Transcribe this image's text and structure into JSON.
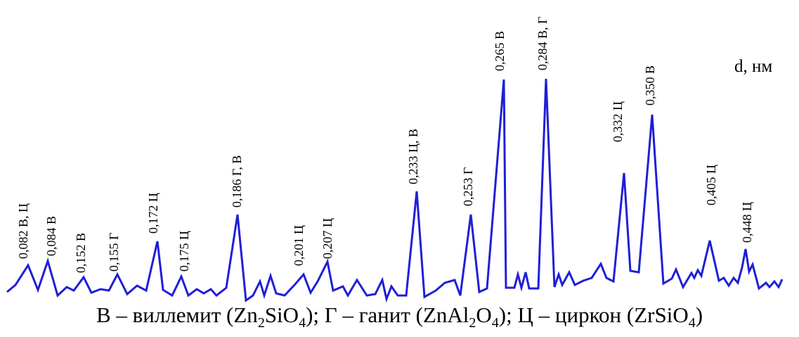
{
  "chart_data": {
    "type": "line",
    "x_unit_label": "d, нм",
    "series_color": "#1f1fd6",
    "peaks": [
      {
        "label": "0,082 В, Ц"
      },
      {
        "label": "0,084 В"
      },
      {
        "label": "0,152 В"
      },
      {
        "label": "0,155 Г"
      },
      {
        "label": "0,172 Ц"
      },
      {
        "label": "0,175 Ц"
      },
      {
        "label": "0,186 Г, В"
      },
      {
        "label": "0,201 Ц"
      },
      {
        "label": "0,207 Ц"
      },
      {
        "label": "0,233 Ц, В"
      },
      {
        "label": "0,253 Г"
      },
      {
        "label": "0,265 В"
      },
      {
        "label": "0,284 В, Г"
      },
      {
        "label": "0,332 Ц"
      },
      {
        "label": "0,350 В"
      },
      {
        "label": "0,405 Ц"
      },
      {
        "label": "0,448 Ц"
      }
    ],
    "legend": [
      {
        "symbol": "В",
        "name": "виллемит",
        "formula_parts": [
          {
            "t": "Zn"
          },
          {
            "t": "2",
            "sub": true
          },
          {
            "t": "SiO"
          },
          {
            "t": "4",
            "sub": true
          }
        ]
      },
      {
        "symbol": "Г",
        "name": "ганит",
        "formula_parts": [
          {
            "t": "ZnAl"
          },
          {
            "t": "2",
            "sub": true
          },
          {
            "t": "O"
          },
          {
            "t": "4",
            "sub": true
          }
        ]
      },
      {
        "symbol": "Ц",
        "name": "циркон",
        "formula_parts": [
          {
            "t": "ZrSiO"
          },
          {
            "t": "4",
            "sub": true
          }
        ]
      }
    ]
  }
}
